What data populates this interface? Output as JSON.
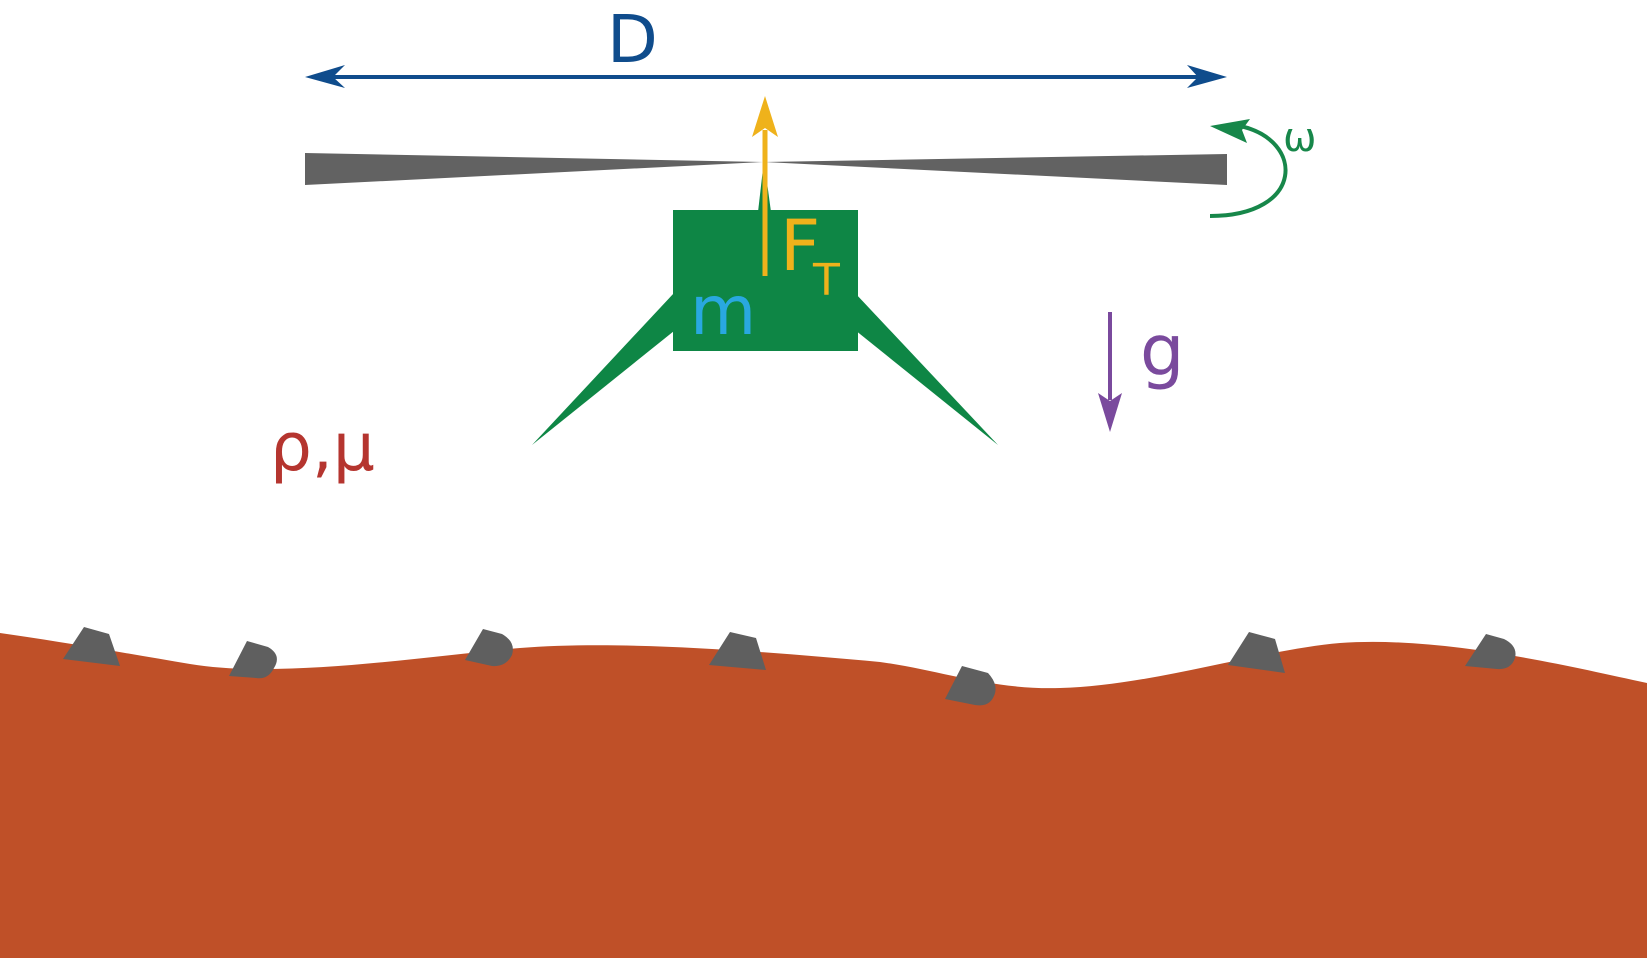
{
  "labels": {
    "diameter": "D",
    "omega": "ω",
    "thrust": "F",
    "thrust_sub": "T",
    "mass": "m",
    "gravity": "g",
    "fluid": "ρ,μ"
  },
  "colors": {
    "diameter": "#0f4c8c",
    "blade": "#626262",
    "omega": "#17874a",
    "body": "#0e8645",
    "legs": "#0e8645",
    "thrust": "#efb21b",
    "mass": "#29a8e0",
    "gravity": "#7a4a9d",
    "fluid": "#b5352f",
    "ground": "#bf5028",
    "rocks": "#5f5f5f",
    "background": "#ffffff"
  }
}
